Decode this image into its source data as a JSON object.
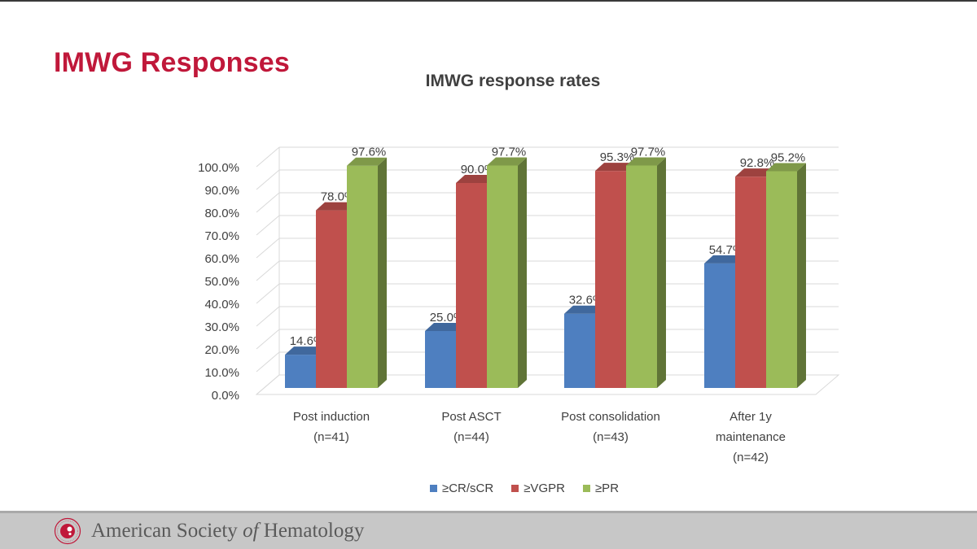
{
  "slide": {
    "title": "IMWG Responses"
  },
  "chart_data": {
    "type": "bar",
    "title": "IMWG response rates",
    "categories": [
      [
        "Post induction",
        "(n=41)"
      ],
      [
        "Post ASCT",
        "(n=44)"
      ],
      [
        "Post consolidation",
        "(n=43)"
      ],
      [
        "After 1y",
        "maintenance",
        "(n=42)"
      ]
    ],
    "series": [
      {
        "name": "≥CR/sCR",
        "values": [
          14.6,
          25.0,
          32.6,
          54.7
        ],
        "color": "#4e7fc0"
      },
      {
        "name": "≥VGPR",
        "values": [
          78.0,
          90.0,
          95.3,
          92.8
        ],
        "color": "#c0504d"
      },
      {
        "name": "≥PR",
        "values": [
          97.6,
          97.7,
          97.7,
          95.2
        ],
        "color": "#9bbb59"
      }
    ],
    "data_labels": [
      [
        "14.6%",
        "25.0%",
        "32.6%",
        "54.7%"
      ],
      [
        "78.0%",
        "90.0%",
        "95.3%",
        "92.8%"
      ],
      [
        "97.6%",
        "97.7%",
        "97.7%",
        "95.2%"
      ]
    ],
    "y_ticks": [
      "0.0%",
      "10.0%",
      "20.0%",
      "30.0%",
      "40.0%",
      "50.0%",
      "60.0%",
      "70.0%",
      "80.0%",
      "90.0%",
      "100.0%"
    ],
    "ylim": [
      0,
      100
    ],
    "grid": true,
    "style": "3d-clustered-column",
    "legend": {
      "position": "bottom"
    }
  },
  "footer": {
    "org_prefix": "American Society ",
    "org_italic": "of",
    "org_suffix": " Hematology"
  }
}
